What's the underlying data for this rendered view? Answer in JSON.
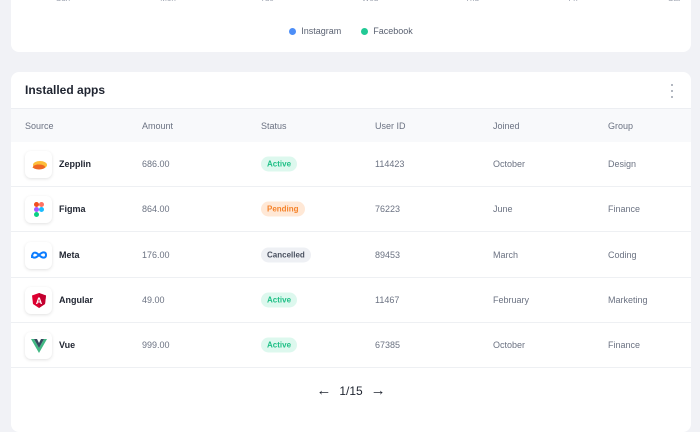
{
  "chart": {
    "x_labels": [
      "Sun",
      "Mon",
      "Tue",
      "Wed",
      "Thu",
      "Fri",
      "Sat"
    ],
    "legend": [
      {
        "label": "Instagram",
        "color": "#4d8ef7"
      },
      {
        "label": "Facebook",
        "color": "#22c995"
      }
    ]
  },
  "apps": {
    "title": "Installed apps",
    "columns": [
      "Source",
      "Amount",
      "Status",
      "User ID",
      "Joined",
      "Group"
    ],
    "rows": [
      {
        "source": "Zepplin",
        "icon": "zeplin-icon",
        "amount": "686.00",
        "status": "Active",
        "user_id": "114423",
        "joined": "October",
        "group": "Design"
      },
      {
        "source": "Figma",
        "icon": "figma-icon",
        "amount": "864.00",
        "status": "Pending",
        "user_id": "76223",
        "joined": "June",
        "group": "Finance"
      },
      {
        "source": "Meta",
        "icon": "meta-icon",
        "amount": "176.00",
        "status": "Cancelled",
        "user_id": "89453",
        "joined": "March",
        "group": "Coding"
      },
      {
        "source": "Angular",
        "icon": "angular-icon",
        "amount": "49.00",
        "status": "Active",
        "user_id": "11467",
        "joined": "February",
        "group": "Marketing"
      },
      {
        "source": "Vue",
        "icon": "vue-icon",
        "amount": "999.00",
        "status": "Active",
        "user_id": "67385",
        "joined": "October",
        "group": "Finance"
      }
    ],
    "status_colors": {
      "Active": {
        "bg": "#ddf8ee",
        "fg": "#1fbf86"
      },
      "Pending": {
        "bg": "#ffe8d6",
        "fg": "#f5832a"
      },
      "Cancelled": {
        "bg": "#eef0f4",
        "fg": "#4a5160"
      }
    },
    "pagination": "1/15"
  }
}
